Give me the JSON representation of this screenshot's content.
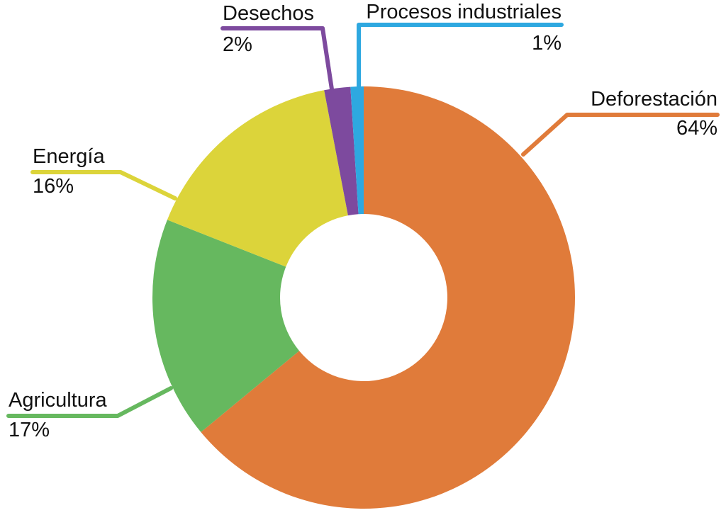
{
  "chart_data": {
    "type": "pie",
    "variant": "donut",
    "title": "",
    "start_angle_deg": 0,
    "direction": "clockwise",
    "center": [
      513,
      420
    ],
    "outer_radius": 298,
    "inner_radius": 118,
    "legend_position": "none (callout labels)",
    "categories": [
      "Deforestación",
      "Agricultura",
      "Energía",
      "Desechos",
      "Procesos industriales"
    ],
    "values": [
      64,
      17,
      16,
      2,
      1
    ],
    "unit": "%",
    "colors": [
      "#E07B3A",
      "#66B85F",
      "#DCD43A",
      "#7D4A9E",
      "#2EA8E0"
    ],
    "labels": [
      {
        "name": "Deforestación",
        "pct": "64%"
      },
      {
        "name": "Agricultura",
        "pct": "17%"
      },
      {
        "name": "Energía",
        "pct": "16%"
      },
      {
        "name": "Desechos",
        "pct": "2%"
      },
      {
        "name": "Procesos industriales",
        "pct": "1%"
      }
    ]
  }
}
